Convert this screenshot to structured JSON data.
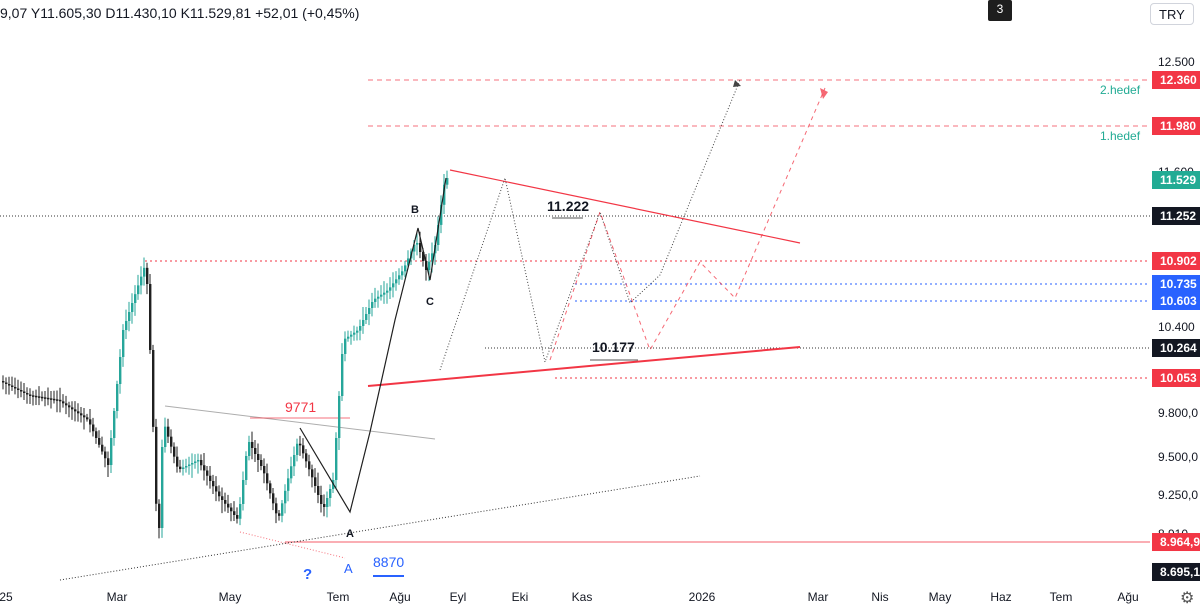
{
  "header": {
    "ohlc_text": "9,07  Y11.605,30  D11.430,10  K11.529,81  +52,01 (+0,45%)",
    "badge": "3",
    "currency": "TRY"
  },
  "chart_data": {
    "type": "candlestick",
    "x_ticks": [
      "25",
      "Mar",
      "May",
      "Tem",
      "Ağu",
      "Eyl",
      "Eki",
      "Kas",
      "2026",
      "Mar",
      "Nis",
      "May",
      "Haz",
      "Tem",
      "Ağu"
    ],
    "y_ticks": [
      "12.500",
      "11.600",
      "10.400",
      "9.800,0",
      "9.500,0",
      "9.250,0",
      "8.910"
    ],
    "price_labels": [
      {
        "text": "12.360",
        "kind": "red",
        "value": 12360
      },
      {
        "text": "11.980",
        "kind": "red",
        "value": 11980
      },
      {
        "text": "11.529",
        "kind": "green",
        "value": 11529
      },
      {
        "text": "11.252",
        "kind": "black",
        "value": 11252
      },
      {
        "text": "10.902",
        "kind": "red",
        "value": 10902
      },
      {
        "text": "10.735",
        "kind": "blue",
        "value": 10735
      },
      {
        "text": "10.603",
        "kind": "blue",
        "value": 10603
      },
      {
        "text": "10.264",
        "kind": "black",
        "value": 10264
      },
      {
        "text": "10.053",
        "kind": "red",
        "value": 10053
      },
      {
        "text": "8.964,9",
        "kind": "red",
        "value": 8964.9
      },
      {
        "text": "8.695,1",
        "kind": "black",
        "value": 8695.1
      }
    ],
    "annotations": {
      "target2": "2.hedef",
      "target1": "1.hedef",
      "level_11222": "11.222",
      "level_10177": "10.177",
      "level_9771": "9771",
      "level_8870": "8870",
      "wave_A1": "A",
      "wave_B": "B",
      "wave_C": "C",
      "wave_A2": "A",
      "question": "?",
      "wave_A_blue": "A"
    },
    "colors": {
      "up": "#26a69a",
      "down": "#1f1f1f",
      "red": "#f23645",
      "blue": "#2962ff",
      "green": "#22ab94",
      "teal_text": "#22ab94"
    }
  },
  "footer": {
    "settings_icon": "gear-icon"
  }
}
